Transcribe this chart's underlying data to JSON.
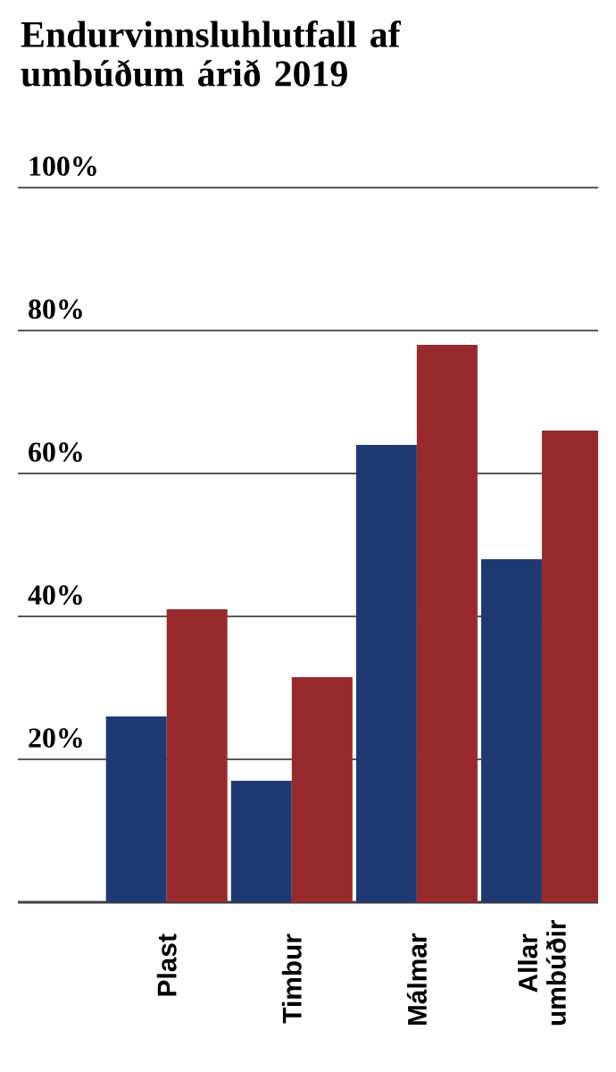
{
  "chart_data": {
    "type": "bar",
    "title": "Endurvinnsluhlutfall af umbúðum árið 2019",
    "categories": [
      "Plast",
      "Timbur",
      "Málmar",
      "Allar umbúðir"
    ],
    "series": [
      {
        "color": "#1f3a73",
        "values": [
          26,
          17,
          64,
          48
        ]
      },
      {
        "color": "#982a2d",
        "values": [
          41,
          31.5,
          78,
          66
        ]
      }
    ],
    "ylim": [
      0,
      100
    ],
    "yticks": [
      {
        "value": 0,
        "label": null
      },
      {
        "value": 20,
        "label": "20%"
      },
      {
        "value": 40,
        "label": "40%"
      },
      {
        "value": 60,
        "label": "60%"
      },
      {
        "value": 80,
        "label": "80%"
      },
      {
        "value": 100,
        "label": "100%"
      }
    ],
    "grid": "y"
  }
}
